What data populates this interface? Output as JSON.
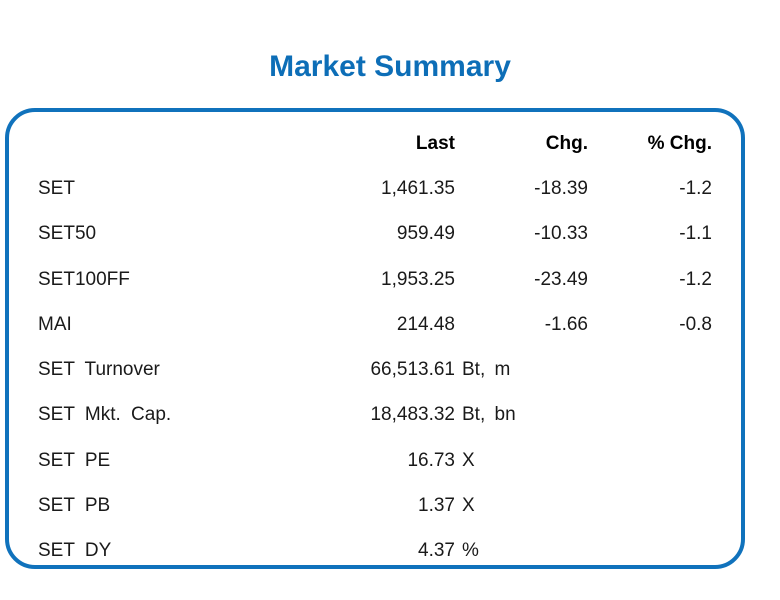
{
  "title": "Market Summary",
  "colors": {
    "accent_blue": "#1072bc",
    "title_blue": "#0d6eb7",
    "text": "#1a1a1a"
  },
  "chart_data": {
    "type": "table",
    "title": "Market Summary",
    "columns": [
      "",
      "Last",
      "Chg.",
      "% Chg."
    ],
    "rows": [
      [
        "SET",
        "1,461.35",
        "-18.39",
        "-1.2"
      ],
      [
        "SET50",
        "959.49",
        "-10.33",
        "-1.1"
      ],
      [
        "SET100FF",
        "1,953.25",
        "-23.49",
        "-1.2"
      ],
      [
        "MAI",
        "214.48",
        "-1.66",
        "-0.8"
      ],
      [
        "SET Turnover",
        "66,513.61 Bt, m",
        "",
        ""
      ],
      [
        "SET Mkt. Cap.",
        "18,483.32 Bt, bn",
        "",
        ""
      ],
      [
        "SET PE",
        "16.73 X",
        "",
        ""
      ],
      [
        "SET PB",
        "1.37 X",
        "",
        ""
      ],
      [
        "SET DY",
        "4.37 %",
        "",
        ""
      ]
    ]
  },
  "table": {
    "header": {
      "label": "",
      "last": "Last",
      "chg": "Chg.",
      "pchg": "% Chg."
    },
    "rows": [
      {
        "label": "SET",
        "last": "1,461.35",
        "unit": "",
        "chg": "-18.39",
        "pchg": "-1.2"
      },
      {
        "label": "SET50",
        "last": "959.49",
        "unit": "",
        "chg": "-10.33",
        "pchg": "-1.1"
      },
      {
        "label": "SET100FF",
        "last": "1,953.25",
        "unit": "",
        "chg": "-23.49",
        "pchg": "-1.2"
      },
      {
        "label": "MAI",
        "last": "214.48",
        "unit": "",
        "chg": "-1.66",
        "pchg": "-0.8"
      },
      {
        "label": "SET Turnover",
        "last": "66,513.61",
        "unit": "Bt, m",
        "chg": "",
        "pchg": ""
      },
      {
        "label": "SET Mkt. Cap.",
        "last": "18,483.32",
        "unit": "Bt, bn",
        "chg": "",
        "pchg": ""
      },
      {
        "label": "SET PE",
        "last": "16.73",
        "unit": "X",
        "chg": "",
        "pchg": ""
      },
      {
        "label": "SET PB",
        "last": "1.37",
        "unit": "X",
        "chg": "",
        "pchg": ""
      },
      {
        "label": "SET DY",
        "last": "4.37",
        "unit": "%",
        "chg": "",
        "pchg": ""
      }
    ]
  }
}
